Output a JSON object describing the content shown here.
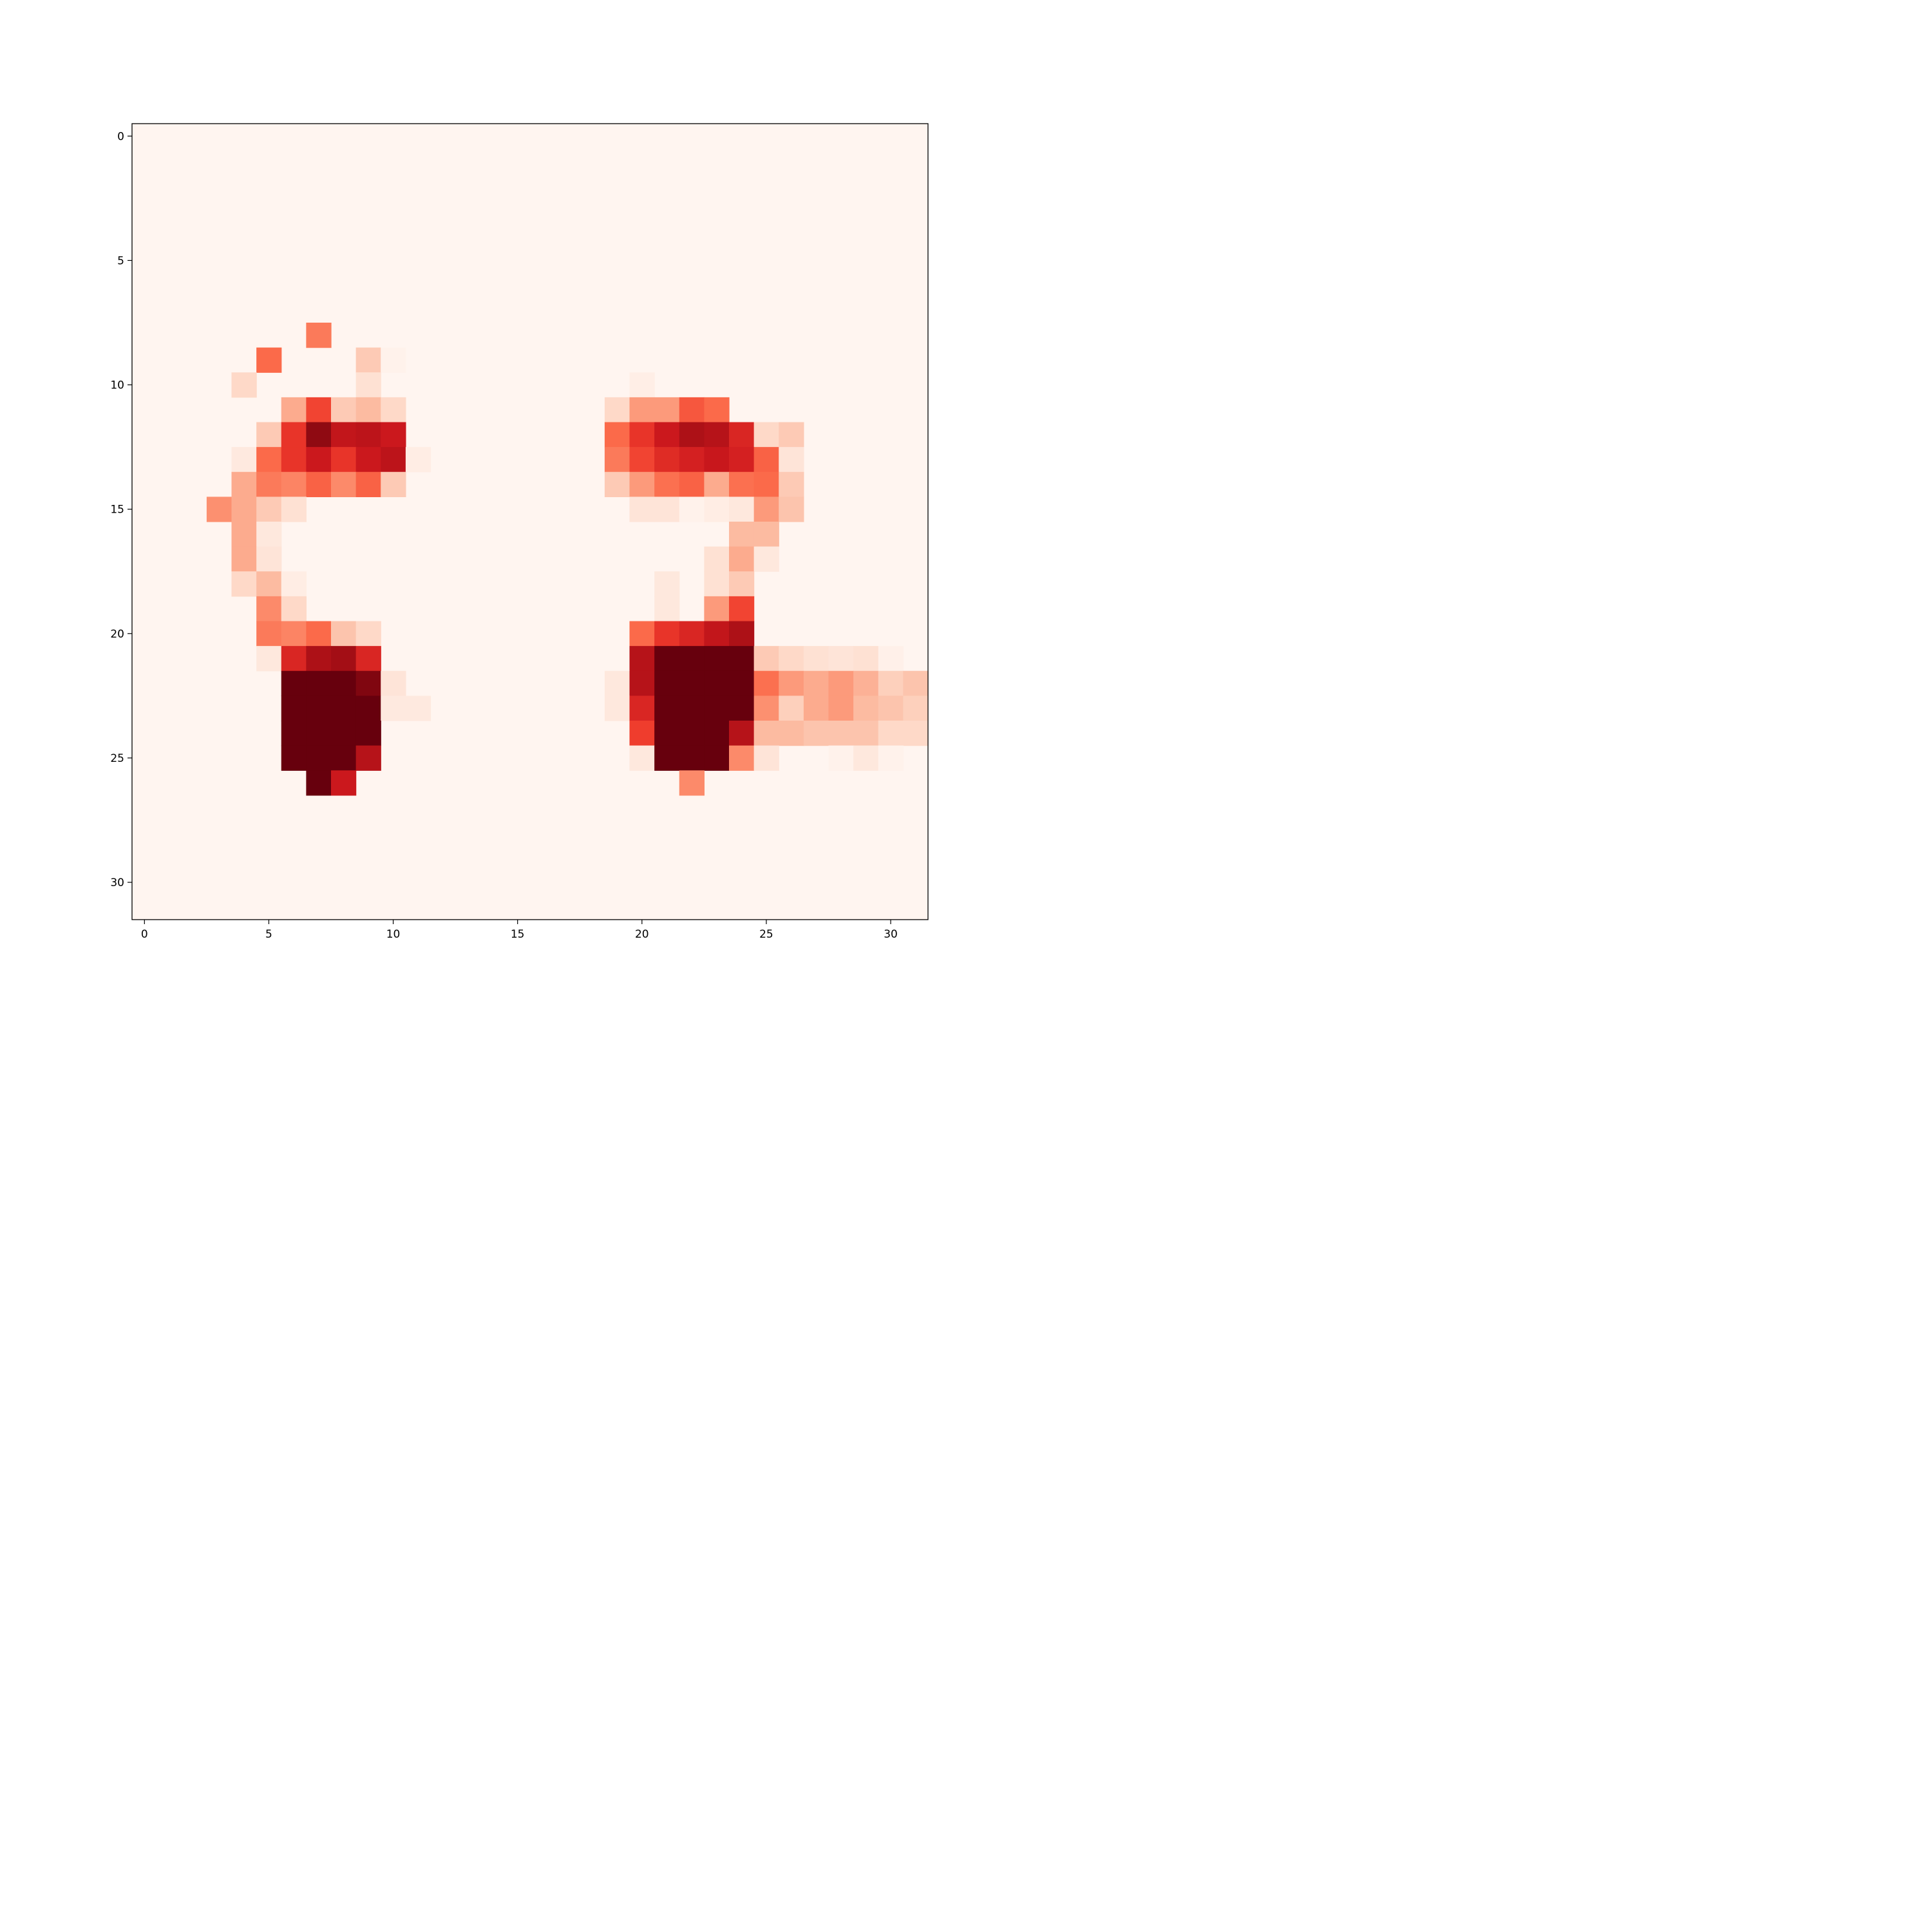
{
  "chart_data": {
    "type": "heatmap",
    "colormap": "Reds",
    "vmin": 0,
    "vmax": 1,
    "rows": 32,
    "cols": 32,
    "x_ticks": [
      0,
      5,
      10,
      15,
      20,
      25,
      30
    ],
    "x_tick_labels": [
      "0",
      "5",
      "10",
      "15",
      "20",
      "25",
      "30"
    ],
    "y_ticks": [
      0,
      5,
      10,
      15,
      20,
      25,
      30
    ],
    "y_tick_labels": [
      "0",
      "5",
      "10",
      "15",
      "20",
      "25",
      "30"
    ],
    "xlim": [
      -0.5,
      31.5
    ],
    "ylim": [
      31.5,
      -0.5
    ],
    "grid": false,
    "background_value": 0.0,
    "cells": [
      [
        8,
        7,
        0.45
      ],
      [
        9,
        5,
        0.5
      ],
      [
        9,
        9,
        0.2
      ],
      [
        9,
        10,
        0.02
      ],
      [
        10,
        4,
        0.15
      ],
      [
        10,
        9,
        0.12
      ],
      [
        10,
        20,
        0.04
      ],
      [
        11,
        6,
        0.3
      ],
      [
        11,
        7,
        0.6
      ],
      [
        11,
        8,
        0.2
      ],
      [
        11,
        9,
        0.25
      ],
      [
        11,
        10,
        0.15
      ],
      [
        11,
        19,
        0.15
      ],
      [
        11,
        20,
        0.35
      ],
      [
        11,
        21,
        0.35
      ],
      [
        11,
        22,
        0.55
      ],
      [
        11,
        23,
        0.5
      ],
      [
        12,
        5,
        0.2
      ],
      [
        12,
        6,
        0.65
      ],
      [
        12,
        7,
        0.92
      ],
      [
        12,
        8,
        0.78
      ],
      [
        12,
        9,
        0.8
      ],
      [
        12,
        10,
        0.75
      ],
      [
        12,
        19,
        0.5
      ],
      [
        12,
        20,
        0.65
      ],
      [
        12,
        21,
        0.75
      ],
      [
        12,
        22,
        0.85
      ],
      [
        12,
        23,
        0.82
      ],
      [
        12,
        24,
        0.7
      ],
      [
        12,
        25,
        0.15
      ],
      [
        12,
        26,
        0.2
      ],
      [
        13,
        4,
        0.07
      ],
      [
        13,
        5,
        0.5
      ],
      [
        13,
        6,
        0.65
      ],
      [
        13,
        7,
        0.75
      ],
      [
        13,
        8,
        0.65
      ],
      [
        13,
        9,
        0.75
      ],
      [
        13,
        10,
        0.8
      ],
      [
        13,
        11,
        0.05
      ],
      [
        13,
        19,
        0.45
      ],
      [
        13,
        20,
        0.6
      ],
      [
        13,
        21,
        0.68
      ],
      [
        13,
        22,
        0.72
      ],
      [
        13,
        23,
        0.76
      ],
      [
        13,
        24,
        0.72
      ],
      [
        13,
        25,
        0.52
      ],
      [
        13,
        26,
        0.1
      ],
      [
        14,
        4,
        0.3
      ],
      [
        14,
        5,
        0.45
      ],
      [
        14,
        6,
        0.42
      ],
      [
        14,
        7,
        0.52
      ],
      [
        14,
        8,
        0.4
      ],
      [
        14,
        9,
        0.52
      ],
      [
        14,
        10,
        0.2
      ],
      [
        14,
        19,
        0.2
      ],
      [
        14,
        20,
        0.35
      ],
      [
        14,
        21,
        0.48
      ],
      [
        14,
        22,
        0.52
      ],
      [
        14,
        23,
        0.3
      ],
      [
        14,
        24,
        0.48
      ],
      [
        14,
        25,
        0.5
      ],
      [
        14,
        26,
        0.2
      ],
      [
        15,
        3,
        0.38
      ],
      [
        15,
        4,
        0.3
      ],
      [
        15,
        5,
        0.2
      ],
      [
        15,
        6,
        0.12
      ],
      [
        15,
        20,
        0.1
      ],
      [
        15,
        21,
        0.1
      ],
      [
        15,
        22,
        0.02
      ],
      [
        15,
        23,
        0.05
      ],
      [
        15,
        24,
        0.08
      ],
      [
        15,
        25,
        0.35
      ],
      [
        15,
        26,
        0.22
      ],
      [
        16,
        4,
        0.3
      ],
      [
        16,
        5,
        0.08
      ],
      [
        16,
        24,
        0.25
      ],
      [
        16,
        25,
        0.25
      ],
      [
        17,
        4,
        0.3
      ],
      [
        17,
        5,
        0.1
      ],
      [
        17,
        23,
        0.12
      ],
      [
        17,
        24,
        0.3
      ],
      [
        17,
        25,
        0.08
      ],
      [
        18,
        4,
        0.15
      ],
      [
        18,
        5,
        0.25
      ],
      [
        18,
        6,
        0.05
      ],
      [
        18,
        21,
        0.08
      ],
      [
        18,
        23,
        0.12
      ],
      [
        18,
        24,
        0.2
      ],
      [
        19,
        5,
        0.4
      ],
      [
        19,
        6,
        0.15
      ],
      [
        19,
        21,
        0.08
      ],
      [
        19,
        23,
        0.35
      ],
      [
        19,
        24,
        0.6
      ],
      [
        20,
        5,
        0.45
      ],
      [
        20,
        6,
        0.42
      ],
      [
        20,
        7,
        0.5
      ],
      [
        20,
        8,
        0.22
      ],
      [
        20,
        9,
        0.15
      ],
      [
        20,
        20,
        0.5
      ],
      [
        20,
        21,
        0.65
      ],
      [
        20,
        22,
        0.7
      ],
      [
        20,
        23,
        0.78
      ],
      [
        20,
        24,
        0.85
      ],
      [
        21,
        5,
        0.08
      ],
      [
        21,
        6,
        0.7
      ],
      [
        21,
        7,
        0.85
      ],
      [
        21,
        8,
        0.88
      ],
      [
        21,
        9,
        0.7
      ],
      [
        21,
        20,
        0.82
      ],
      [
        21,
        21,
        1.0
      ],
      [
        21,
        22,
        1.0
      ],
      [
        21,
        23,
        1.0
      ],
      [
        21,
        24,
        1.0
      ],
      [
        21,
        25,
        0.2
      ],
      [
        21,
        26,
        0.15
      ],
      [
        21,
        27,
        0.12
      ],
      [
        21,
        28,
        0.1
      ],
      [
        21,
        29,
        0.12
      ],
      [
        21,
        30,
        0.03
      ],
      [
        22,
        6,
        1.0
      ],
      [
        22,
        7,
        1.0
      ],
      [
        22,
        8,
        1.0
      ],
      [
        22,
        9,
        0.95
      ],
      [
        22,
        10,
        0.1
      ],
      [
        22,
        19,
        0.08
      ],
      [
        22,
        20,
        0.82
      ],
      [
        22,
        21,
        1.0
      ],
      [
        22,
        22,
        1.0
      ],
      [
        22,
        23,
        1.0
      ],
      [
        22,
        24,
        1.0
      ],
      [
        22,
        25,
        0.48
      ],
      [
        22,
        26,
        0.35
      ],
      [
        22,
        27,
        0.3
      ],
      [
        22,
        28,
        0.35
      ],
      [
        22,
        29,
        0.28
      ],
      [
        22,
        30,
        0.18
      ],
      [
        22,
        31,
        0.22
      ],
      [
        23,
        6,
        1.0
      ],
      [
        23,
        7,
        1.0
      ],
      [
        23,
        8,
        1.0
      ],
      [
        23,
        9,
        1.0
      ],
      [
        23,
        10,
        0.07
      ],
      [
        23,
        11,
        0.07
      ],
      [
        23,
        19,
        0.08
      ],
      [
        23,
        20,
        0.7
      ],
      [
        23,
        21,
        1.0
      ],
      [
        23,
        22,
        1.0
      ],
      [
        23,
        23,
        1.0
      ],
      [
        23,
        24,
        1.0
      ],
      [
        23,
        25,
        0.38
      ],
      [
        23,
        26,
        0.18
      ],
      [
        23,
        27,
        0.3
      ],
      [
        23,
        28,
        0.35
      ],
      [
        23,
        29,
        0.25
      ],
      [
        23,
        30,
        0.22
      ],
      [
        23,
        31,
        0.18
      ],
      [
        24,
        6,
        1.0
      ],
      [
        24,
        7,
        1.0
      ],
      [
        24,
        8,
        1.0
      ],
      [
        24,
        9,
        1.0
      ],
      [
        24,
        20,
        0.62
      ],
      [
        24,
        21,
        1.0
      ],
      [
        24,
        22,
        1.0
      ],
      [
        24,
        23,
        1.0
      ],
      [
        24,
        24,
        0.82
      ],
      [
        24,
        25,
        0.25
      ],
      [
        24,
        26,
        0.25
      ],
      [
        24,
        27,
        0.22
      ],
      [
        24,
        28,
        0.22
      ],
      [
        24,
        29,
        0.22
      ],
      [
        24,
        30,
        0.15
      ],
      [
        24,
        31,
        0.15
      ],
      [
        25,
        6,
        1.0
      ],
      [
        25,
        7,
        1.0
      ],
      [
        25,
        8,
        1.0
      ],
      [
        25,
        9,
        0.82
      ],
      [
        25,
        20,
        0.08
      ],
      [
        25,
        21,
        1.0
      ],
      [
        25,
        22,
        1.0
      ],
      [
        25,
        23,
        1.0
      ],
      [
        25,
        24,
        0.4
      ],
      [
        25,
        25,
        0.1
      ],
      [
        25,
        28,
        0.02
      ],
      [
        25,
        29,
        0.08
      ],
      [
        25,
        30,
        0.02
      ],
      [
        26,
        7,
        1.0
      ],
      [
        26,
        8,
        0.75
      ],
      [
        26,
        22,
        0.4
      ]
    ]
  }
}
